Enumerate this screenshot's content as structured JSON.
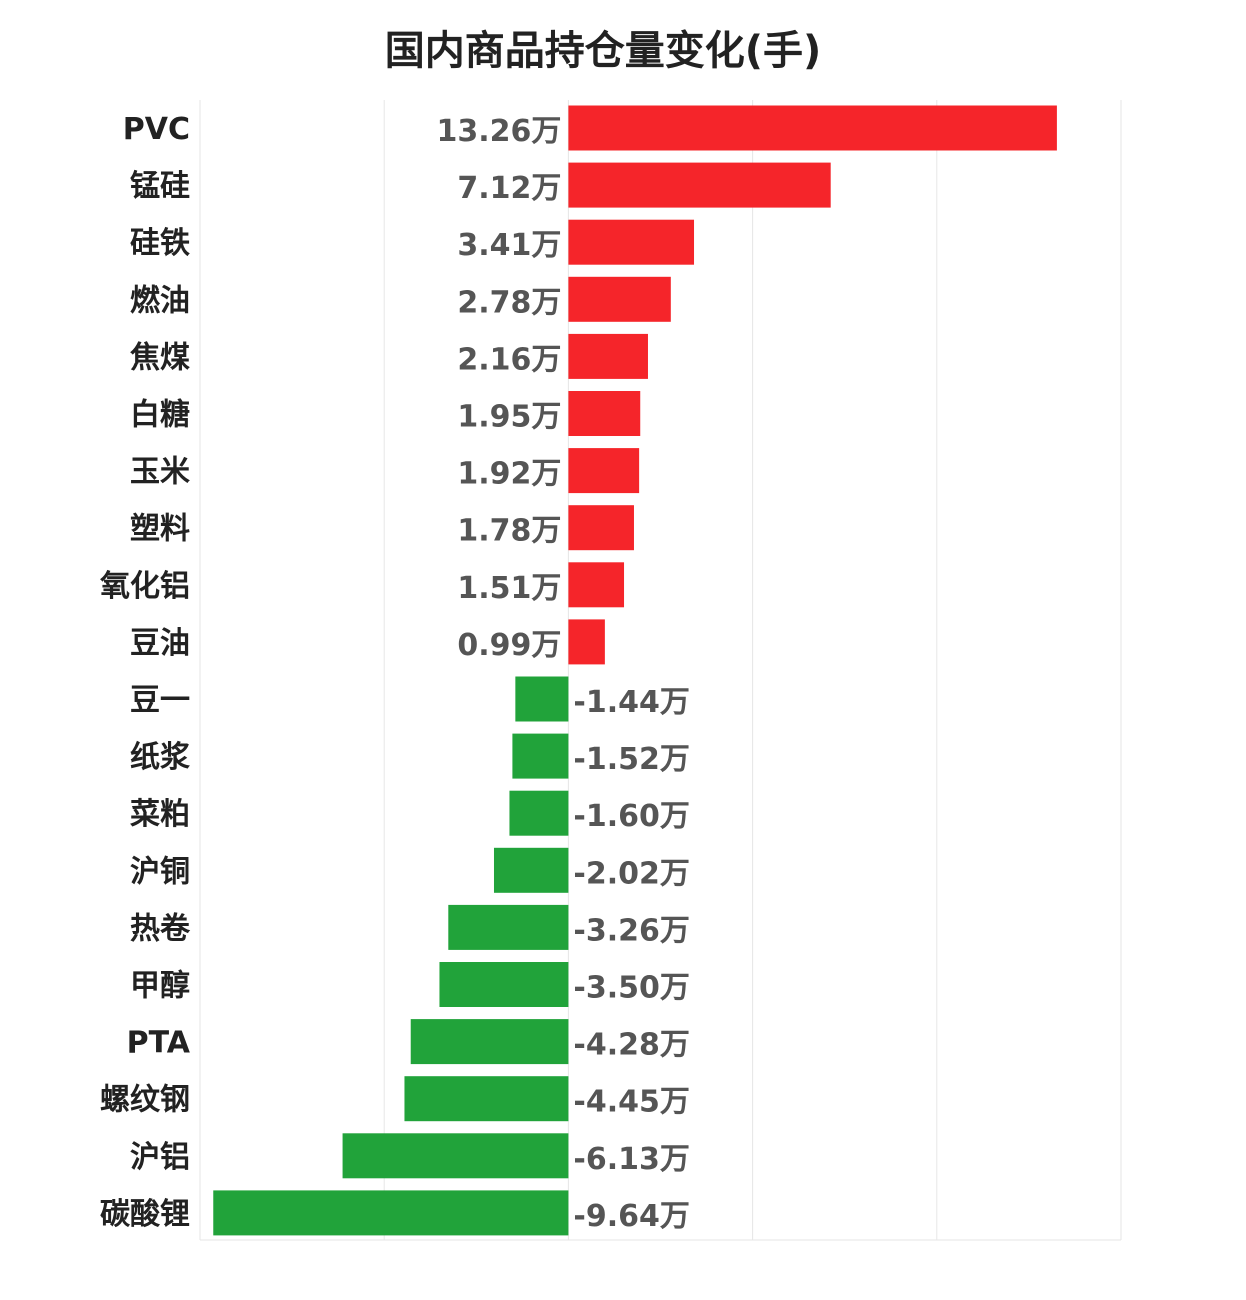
{
  "chart_data": {
    "type": "bar",
    "orientation": "horizontal",
    "title": "国内商品持仓量变化(手)",
    "unit_suffix": "万",
    "categories": [
      "PVC",
      "锰硅",
      "硅铁",
      "燃油",
      "焦煤",
      "白糖",
      "玉米",
      "塑料",
      "氧化铝",
      "豆油",
      "豆一",
      "纸浆",
      "菜粕",
      "沪铜",
      "热卷",
      "甲醇",
      "PTA",
      "螺纹钢",
      "沪铝",
      "碳酸锂"
    ],
    "values": [
      13.26,
      7.12,
      3.41,
      2.78,
      2.16,
      1.95,
      1.92,
      1.78,
      1.51,
      0.99,
      -1.44,
      -1.52,
      -1.6,
      -2.02,
      -3.26,
      -3.5,
      -4.28,
      -4.45,
      -6.13,
      -9.64
    ],
    "value_labels": [
      "13.26万",
      "7.12万",
      "3.41万",
      "2.78万",
      "2.16万",
      "1.95万",
      "1.92万",
      "1.78万",
      "1.51万",
      "0.99万",
      "-1.44万",
      "-1.52万",
      "-1.60万",
      "-2.02万",
      "-3.26万",
      "-3.50万",
      "-4.28万",
      "-4.45万",
      "-6.13万",
      "-9.64万"
    ],
    "xlim": [
      -10,
      15
    ],
    "grid": true,
    "colors": {
      "positive": "#f5252a",
      "negative": "#21a33a",
      "grid": "#e6e6e6"
    }
  }
}
